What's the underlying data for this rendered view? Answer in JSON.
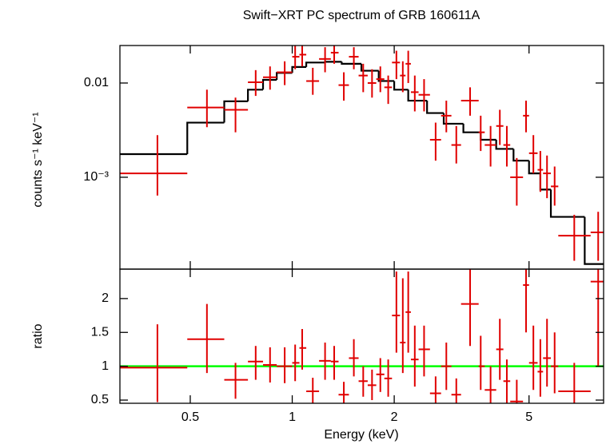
{
  "chart_data": [
    {
      "type": "errorbar",
      "title": "Swift−XRT PC spectrum of GRB 160611A",
      "ylabel": "counts s⁻¹ keV⁻¹",
      "xlog": true,
      "ylog": true,
      "xlim": [
        0.31,
        8.3
      ],
      "ylim": [
        0.000106,
        0.025
      ],
      "xticks": [
        0.5,
        1,
        2,
        5
      ],
      "yticks": [
        {
          "value": 0.001,
          "label": "10⁻³"
        },
        0.01
      ],
      "data": {
        "color": "#e00000",
        "x": [
          0.4,
          0.56,
          0.68,
          0.78,
          0.86,
          0.95,
          1.02,
          1.07,
          1.15,
          1.25,
          1.33,
          1.42,
          1.52,
          1.62,
          1.72,
          1.82,
          1.92,
          2.03,
          2.12,
          2.2,
          2.3,
          2.45,
          2.65,
          2.85,
          3.05,
          3.35,
          3.6,
          3.85,
          4.1,
          4.3,
          4.6,
          4.9,
          5.15,
          5.4,
          5.65,
          5.95,
          6.8,
          8.0
        ],
        "x_low": [
          0.31,
          0.49,
          0.63,
          0.74,
          0.82,
          0.9,
          1.0,
          1.05,
          1.1,
          1.2,
          1.3,
          1.37,
          1.47,
          1.57,
          1.67,
          1.77,
          1.87,
          1.97,
          2.08,
          2.16,
          2.24,
          2.36,
          2.55,
          2.75,
          2.95,
          3.15,
          3.55,
          3.7,
          4.0,
          4.2,
          4.4,
          4.8,
          5.0,
          5.3,
          5.5,
          5.8,
          6.1,
          7.6
        ],
        "x_high": [
          0.49,
          0.63,
          0.74,
          0.82,
          0.9,
          1.0,
          1.05,
          1.1,
          1.2,
          1.3,
          1.37,
          1.47,
          1.57,
          1.67,
          1.77,
          1.87,
          1.97,
          2.08,
          2.16,
          2.24,
          2.36,
          2.55,
          2.75,
          2.95,
          3.15,
          3.55,
          3.7,
          4.0,
          4.2,
          4.4,
          4.8,
          5.0,
          5.3,
          5.5,
          5.8,
          6.1,
          7.6,
          8.3
        ],
        "y": [
          0.0011,
          0.0055,
          0.0052,
          0.0102,
          0.0115,
          0.013,
          0.019,
          0.02,
          0.0105,
          0.018,
          0.021,
          0.0095,
          0.019,
          0.012,
          0.01,
          0.011,
          0.009,
          0.0165,
          0.012,
          0.016,
          0.008,
          0.0075,
          0.0025,
          0.0045,
          0.0022,
          0.0065,
          0.003,
          0.0022,
          0.0035,
          0.0022,
          0.001,
          0.0045,
          0.0018,
          0.0012,
          0.0011,
          0.0008,
          0.00024,
          0.00026
        ],
        "y_low": [
          0.00064,
          0.0034,
          0.003,
          0.0073,
          0.0085,
          0.0095,
          0.014,
          0.015,
          0.0075,
          0.013,
          0.016,
          0.0065,
          0.014,
          0.008,
          0.007,
          0.008,
          0.006,
          0.011,
          0.008,
          0.01,
          0.005,
          0.005,
          0.0015,
          0.003,
          0.0014,
          0.0045,
          0.0019,
          0.0013,
          0.0022,
          0.0013,
          0.0005,
          0.003,
          0.0011,
          0.0007,
          0.0006,
          0.0005,
          0.00013,
          0.00013
        ],
        "y_high": [
          0.0028,
          0.0085,
          0.007,
          0.0137,
          0.015,
          0.017,
          0.025,
          0.025,
          0.0145,
          0.024,
          0.025,
          0.013,
          0.024,
          0.016,
          0.014,
          0.015,
          0.012,
          0.022,
          0.017,
          0.022,
          0.012,
          0.011,
          0.0038,
          0.0065,
          0.0035,
          0.009,
          0.0045,
          0.0035,
          0.0052,
          0.0035,
          0.0016,
          0.0065,
          0.0028,
          0.0019,
          0.0017,
          0.0013,
          0.0004,
          0.00043
        ]
      },
      "model": {
        "color": "#000000",
        "bins": [
          0.31,
          0.49,
          0.63,
          0.74,
          0.82,
          0.9,
          1.0,
          1.1,
          1.25,
          1.4,
          1.6,
          1.8,
          2.0,
          2.2,
          2.5,
          2.8,
          3.2,
          3.6,
          4.0,
          4.5,
          5.0,
          5.4,
          5.8,
          7.3,
          8.3
        ],
        "values": [
          0.00176,
          0.0038,
          0.0064,
          0.0085,
          0.0108,
          0.0128,
          0.0148,
          0.0165,
          0.0168,
          0.016,
          0.0135,
          0.0105,
          0.0085,
          0.0065,
          0.0048,
          0.0037,
          0.003,
          0.0025,
          0.002,
          0.0015,
          0.0011,
          0.00074,
          0.00038,
          0.00012
        ]
      }
    },
    {
      "type": "errorbar",
      "xlabel": "Energy (keV)",
      "ylabel": "ratio",
      "xlog": true,
      "xlim": [
        0.31,
        8.3
      ],
      "ylim": [
        0.453,
        2.435
      ],
      "xticks": [
        0.5,
        1,
        2,
        5
      ],
      "yticks": [
        0.5,
        1,
        1.5,
        2
      ],
      "data": {
        "color": "#e00000",
        "x": [
          0.4,
          0.56,
          0.68,
          0.78,
          0.86,
          0.95,
          1.02,
          1.07,
          1.15,
          1.25,
          1.33,
          1.42,
          1.52,
          1.62,
          1.72,
          1.82,
          1.92,
          2.03,
          2.12,
          2.2,
          2.3,
          2.45,
          2.65,
          2.85,
          3.05,
          3.35,
          3.6,
          3.85,
          4.1,
          4.3,
          4.6,
          4.9,
          5.15,
          5.4,
          5.65,
          5.95,
          6.8,
          8.0
        ],
        "x_low": [
          0.31,
          0.49,
          0.63,
          0.74,
          0.82,
          0.9,
          1.0,
          1.05,
          1.1,
          1.2,
          1.3,
          1.37,
          1.47,
          1.57,
          1.67,
          1.77,
          1.87,
          1.97,
          2.08,
          2.16,
          2.24,
          2.36,
          2.55,
          2.75,
          2.95,
          3.15,
          3.55,
          3.7,
          4.0,
          4.2,
          4.4,
          4.8,
          5.0,
          5.3,
          5.5,
          5.8,
          6.1,
          7.6
        ],
        "x_high": [
          0.49,
          0.63,
          0.74,
          0.82,
          0.9,
          1.0,
          1.05,
          1.1,
          1.2,
          1.3,
          1.37,
          1.47,
          1.57,
          1.67,
          1.77,
          1.87,
          1.97,
          2.08,
          2.16,
          2.24,
          2.36,
          2.55,
          2.75,
          2.95,
          3.15,
          3.55,
          3.7,
          4.0,
          4.2,
          4.4,
          4.8,
          5.0,
          5.3,
          5.5,
          5.8,
          6.1,
          7.6,
          8.3
        ],
        "y": [
          0.98,
          1.4,
          0.8,
          1.07,
          1.02,
          1.0,
          1.05,
          1.27,
          0.63,
          1.08,
          1.07,
          0.58,
          1.12,
          0.78,
          0.72,
          0.88,
          0.82,
          1.75,
          1.35,
          1.8,
          1.1,
          1.25,
          0.6,
          1.0,
          0.58,
          1.92,
          1.0,
          0.65,
          1.25,
          0.78,
          0.48,
          2.2,
          1.05,
          0.92,
          1.12,
          1.0,
          0.63,
          2.25
        ],
        "y_low": [
          0.47,
          0.9,
          0.52,
          0.8,
          0.76,
          0.75,
          0.78,
          0.95,
          0.45,
          0.8,
          0.8,
          0.45,
          0.85,
          0.55,
          0.5,
          0.62,
          0.55,
          1.2,
          0.9,
          1.2,
          0.7,
          0.85,
          0.45,
          0.65,
          0.45,
          1.3,
          0.65,
          0.45,
          0.8,
          0.45,
          0.45,
          1.5,
          0.65,
          0.55,
          0.7,
          0.6,
          0.45,
          1.0
        ],
        "y_high": [
          1.62,
          1.92,
          1.05,
          1.3,
          1.28,
          1.28,
          1.32,
          1.55,
          0.83,
          1.35,
          1.3,
          0.77,
          1.4,
          1.0,
          0.95,
          1.12,
          1.1,
          2.4,
          2.3,
          2.4,
          1.6,
          1.6,
          0.85,
          1.35,
          0.82,
          2.44,
          1.45,
          1.0,
          1.7,
          1.1,
          0.8,
          2.44,
          1.6,
          1.4,
          1.7,
          1.5,
          1.05,
          2.44
        ]
      },
      "reference_line": {
        "value": 1,
        "color": "#00ff00"
      }
    }
  ]
}
